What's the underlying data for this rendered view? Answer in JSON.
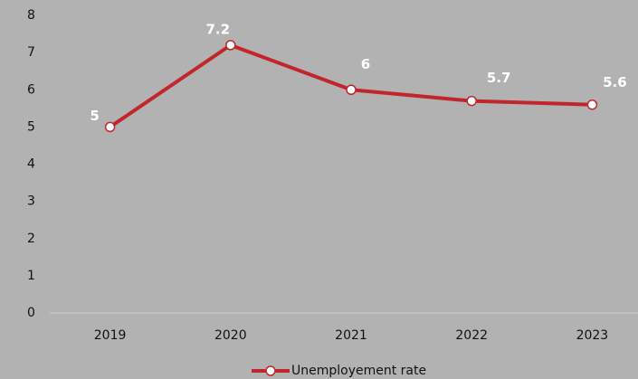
{
  "chart_data": {
    "type": "line",
    "categories": [
      "2019",
      "2020",
      "2021",
      "2022",
      "2023"
    ],
    "series": [
      {
        "name": "Unemployement rate",
        "color": "#c0262c",
        "values": [
          5,
          7.2,
          6,
          5.7,
          5.6
        ]
      }
    ],
    "ylim": [
      0,
      8
    ],
    "yticks": [
      0,
      1,
      2,
      3,
      4,
      5,
      6,
      7,
      8
    ],
    "grid": false,
    "legend": "bottom"
  }
}
